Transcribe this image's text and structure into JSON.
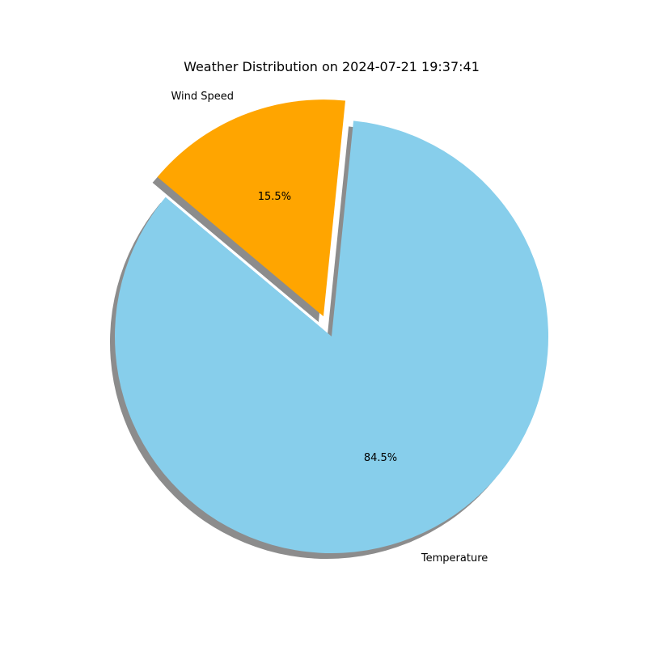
{
  "chart_data": {
    "type": "pie",
    "title": "Weather Distribution on 2024-07-21 19:37:41",
    "categories": [
      "Temperature",
      "Wind Speed"
    ],
    "values": [
      84.5,
      15.5
    ],
    "percent_labels": [
      "84.5%",
      "15.5%"
    ],
    "colors": [
      "#87ceeb",
      "#ffa500"
    ],
    "exploded": [
      false,
      true
    ],
    "shadow": true,
    "start_angle_deg": 140,
    "legend": "none"
  }
}
